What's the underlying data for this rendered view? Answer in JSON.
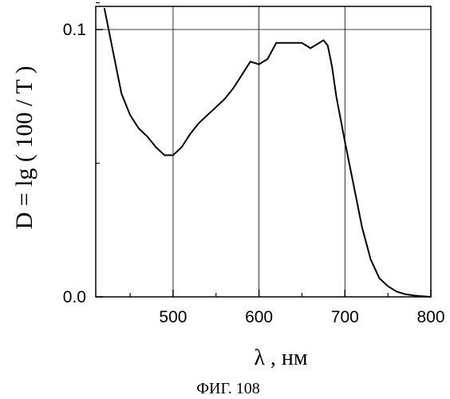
{
  "chart_data": {
    "type": "line",
    "title": "",
    "xlabel": "λ , нм",
    "ylabel": "D = lg ( 100 / T )",
    "caption": "ФИГ. 108",
    "xlim": [
      410,
      800
    ],
    "ylim": [
      0.0,
      0.1
    ],
    "x_ticks": [
      500,
      600,
      700,
      800
    ],
    "y_ticks": [
      0.0,
      0.1
    ],
    "x_tick_labels": [
      "500",
      "600",
      "700",
      "800"
    ],
    "y_tick_labels": [
      "0.0",
      "0.1"
    ],
    "grid": true,
    "series": [
      {
        "x": [
          420,
          430,
          440,
          450,
          460,
          470,
          480,
          490,
          500,
          510,
          520,
          530,
          540,
          550,
          560,
          570,
          580,
          590,
          600,
          610,
          620,
          630,
          640,
          650,
          660,
          670,
          675,
          680,
          685,
          690,
          700,
          710,
          720,
          730,
          740,
          750,
          760,
          770,
          780,
          790,
          800
        ],
        "y": [
          0.108,
          0.092,
          0.076,
          0.068,
          0.063,
          0.06,
          0.056,
          0.053,
          0.053,
          0.056,
          0.061,
          0.065,
          0.068,
          0.071,
          0.074,
          0.078,
          0.083,
          0.088,
          0.087,
          0.089,
          0.095,
          0.095,
          0.095,
          0.095,
          0.093,
          0.095,
          0.096,
          0.094,
          0.086,
          0.075,
          0.058,
          0.042,
          0.026,
          0.014,
          0.007,
          0.004,
          0.002,
          0.001,
          0.0005,
          0.0002,
          0.0
        ]
      }
    ]
  }
}
